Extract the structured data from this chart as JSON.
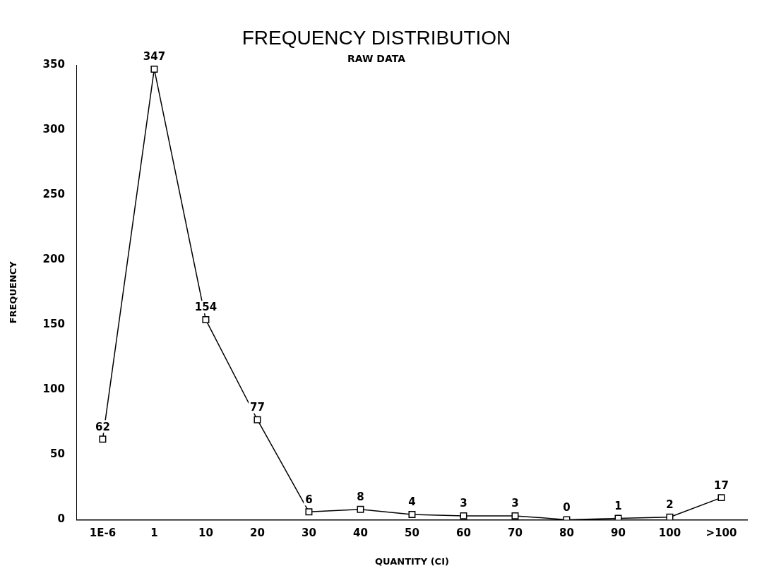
{
  "chart_data": {
    "type": "line",
    "title": "FREQUENCY DISTRIBUTION",
    "subtitle": "RAW DATA",
    "xlabel": "QUANTITY (CI)",
    "ylabel": "FREQUENCY",
    "categories": [
      "1E-6",
      "1",
      "10",
      "20",
      "30",
      "40",
      "50",
      "60",
      "70",
      "80",
      "90",
      "100",
      ">100"
    ],
    "series": [
      {
        "color": "#000000",
        "values": [
          62,
          347,
          154,
          77,
          6,
          8,
          4,
          3,
          3,
          0,
          1,
          2,
          17
        ]
      }
    ],
    "ylim": [
      0,
      350
    ],
    "yticks": [
      0,
      50,
      100,
      150,
      200,
      250,
      300,
      350
    ],
    "grid": false,
    "legend": false,
    "marker": "square",
    "line_style": "solid",
    "data_labels": true
  }
}
